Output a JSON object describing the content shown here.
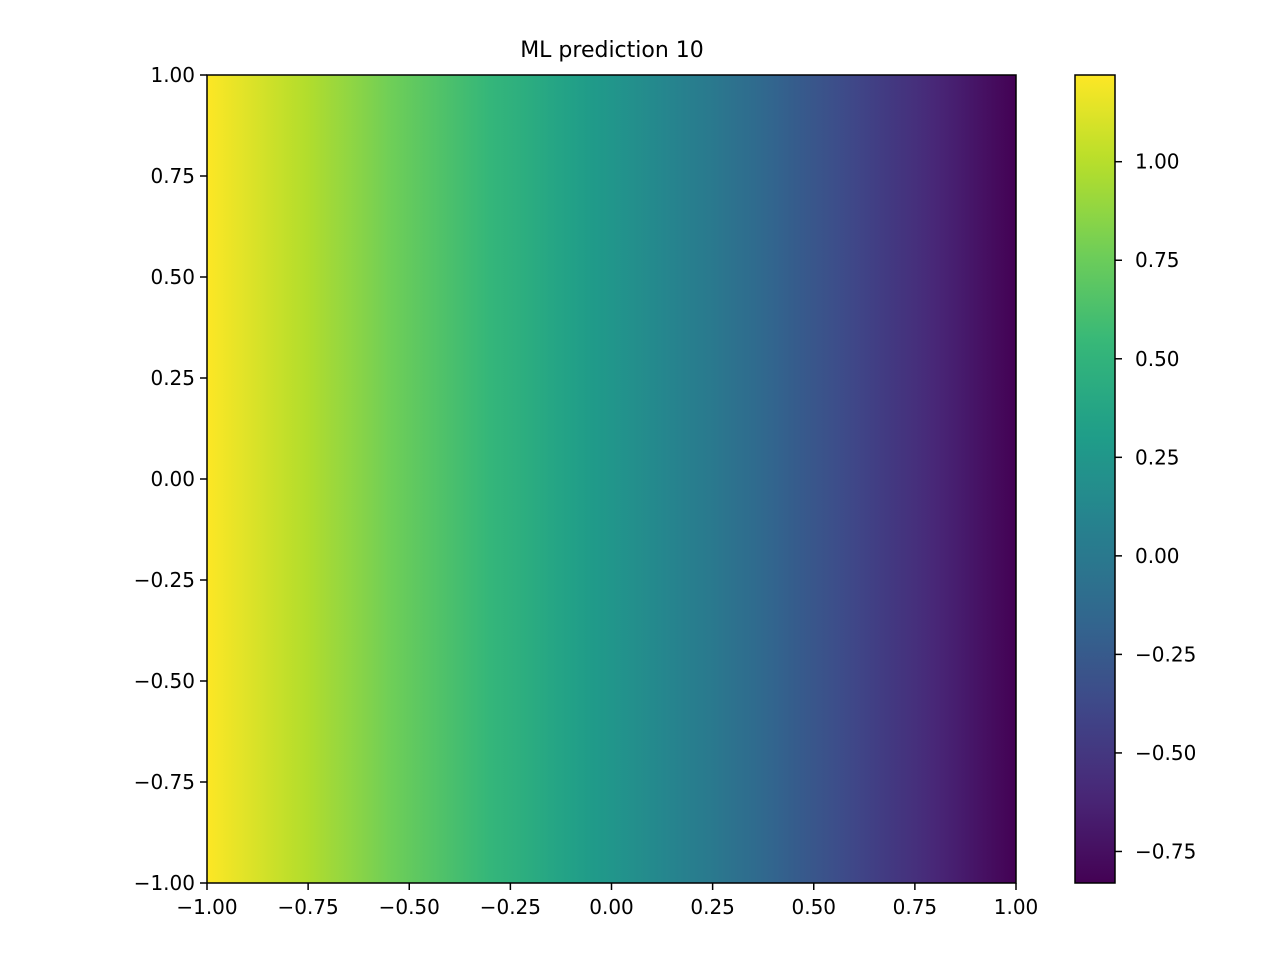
{
  "chart_data": {
    "type": "heatmap",
    "title": "ML prediction 10",
    "xlabel": "",
    "ylabel": "",
    "xlim": [
      -1.0,
      1.0
    ],
    "ylim": [
      -1.0,
      1.0
    ],
    "x_ticks": [
      -1.0,
      -0.75,
      -0.5,
      -0.25,
      0.0,
      0.25,
      0.5,
      0.75,
      1.0
    ],
    "y_ticks": [
      -1.0,
      -0.75,
      -0.5,
      -0.25,
      0.0,
      0.25,
      0.5,
      0.75,
      1.0
    ],
    "x_tick_labels": [
      "−1.00",
      "−0.75",
      "−0.50",
      "−0.25",
      "0.00",
      "0.25",
      "0.50",
      "0.75",
      "1.00"
    ],
    "y_tick_labels": [
      "−1.00",
      "−0.75",
      "−0.50",
      "−0.25",
      "0.00",
      "0.25",
      "0.50",
      "0.75",
      "1.00"
    ],
    "colormap": "viridis",
    "colorbar": {
      "vmin": -0.83,
      "vmax": 1.22,
      "ticks": [
        -0.75,
        -0.5,
        -0.25,
        0.0,
        0.25,
        0.5,
        0.75,
        1.0
      ],
      "tick_labels": [
        "−0.75",
        "−0.50",
        "−0.25",
        "0.00",
        "0.25",
        "0.50",
        "0.75",
        "1.00"
      ]
    },
    "field": {
      "description_axis": "value varies along x only",
      "x": [
        -1.0,
        -0.75,
        -0.5,
        -0.25,
        0.0,
        0.25,
        0.5,
        0.75,
        1.0
      ],
      "values": [
        1.22,
        0.98,
        0.72,
        0.48,
        0.24,
        0.0,
        -0.28,
        -0.55,
        -0.83
      ]
    },
    "grid": false
  }
}
